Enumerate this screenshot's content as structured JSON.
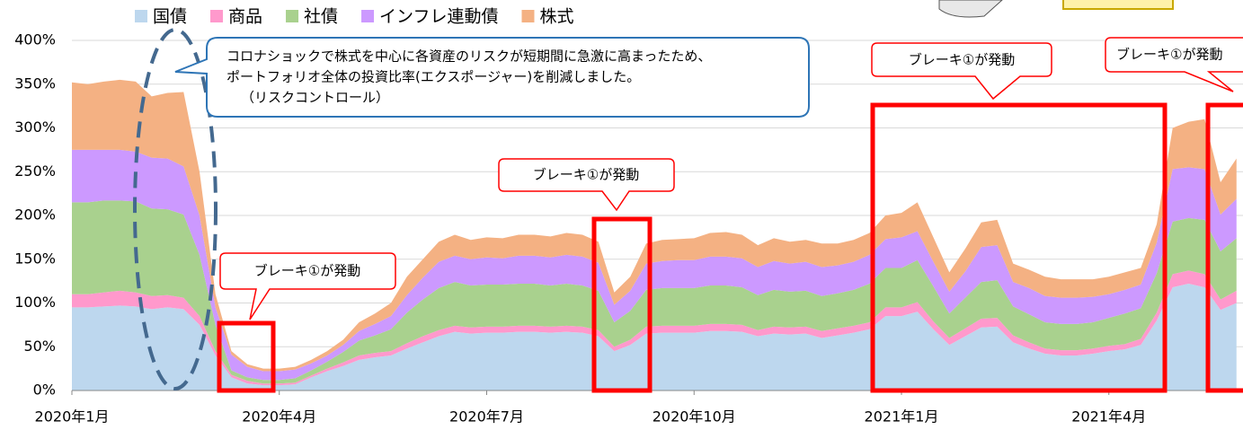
{
  "chart_data": {
    "type": "stacked-area",
    "categories": [
      "2020年1月",
      null,
      null,
      null,
      null,
      null,
      null,
      null,
      null,
      null,
      null,
      null,
      null,
      "2020年4月",
      null,
      null,
      null,
      null,
      null,
      null,
      null,
      null,
      null,
      null,
      null,
      null,
      "2020年7月",
      null,
      null,
      null,
      null,
      null,
      null,
      null,
      null,
      null,
      null,
      null,
      null,
      "2020年10月",
      null,
      null,
      null,
      null,
      null,
      null,
      null,
      null,
      null,
      null,
      null,
      null,
      "2021年1月",
      null,
      null,
      null,
      null,
      null,
      null,
      null,
      null,
      null,
      null,
      null,
      null,
      "2021年4月",
      null,
      null,
      null,
      null,
      null,
      null,
      null,
      null
    ],
    "series": [
      {
        "name": "国債",
        "color": "#bdd7ee",
        "values": [
          95,
          95,
          96,
          97,
          96,
          93,
          95,
          93,
          75,
          40,
          15,
          8,
          6,
          6,
          7,
          15,
          22,
          28,
          35,
          38,
          40,
          48,
          55,
          62,
          67,
          65,
          66,
          66,
          67,
          67,
          66,
          67,
          66,
          62,
          45,
          52,
          65,
          66,
          66,
          66,
          68,
          68,
          67,
          62,
          65,
          64,
          65,
          60,
          63,
          66,
          70,
          85,
          85,
          90,
          70,
          52,
          62,
          72,
          73,
          55,
          48,
          42,
          40,
          40,
          42,
          45,
          47,
          52,
          80,
          118,
          122,
          118,
          92,
          100
        ]
      },
      {
        "name": "商品",
        "color": "#ff99cc",
        "values": [
          15,
          15,
          16,
          17,
          16,
          15,
          14,
          13,
          10,
          5,
          3,
          3,
          2,
          2,
          2,
          2,
          3,
          4,
          5,
          5,
          5,
          6,
          7,
          7,
          7,
          7,
          7,
          7,
          7,
          7,
          7,
          7,
          7,
          7,
          5,
          6,
          8,
          8,
          8,
          8,
          8,
          8,
          8,
          7,
          8,
          8,
          8,
          8,
          8,
          8,
          8,
          10,
          10,
          11,
          9,
          8,
          9,
          10,
          10,
          8,
          7,
          6,
          6,
          6,
          6,
          6,
          6,
          7,
          9,
          15,
          15,
          15,
          12,
          14
        ]
      },
      {
        "name": "社債",
        "color": "#a9d18e",
        "values": [
          105,
          105,
          105,
          103,
          104,
          100,
          98,
          95,
          70,
          30,
          5,
          4,
          4,
          4,
          5,
          6,
          8,
          12,
          17,
          20,
          25,
          35,
          42,
          48,
          50,
          48,
          48,
          48,
          48,
          48,
          47,
          48,
          47,
          45,
          28,
          33,
          42,
          43,
          43,
          43,
          44,
          44,
          43,
          40,
          42,
          41,
          41,
          40,
          40,
          41,
          44,
          45,
          45,
          48,
          40,
          28,
          35,
          42,
          43,
          33,
          32,
          30,
          30,
          30,
          30,
          32,
          35,
          35,
          45,
          60,
          60,
          62,
          55,
          60
        ]
      },
      {
        "name": "インフレ連動債",
        "color": "#cc99ff",
        "values": [
          60,
          60,
          58,
          58,
          57,
          58,
          58,
          55,
          45,
          20,
          18,
          12,
          10,
          10,
          10,
          8,
          7,
          8,
          11,
          13,
          15,
          20,
          25,
          30,
          30,
          30,
          31,
          30,
          32,
          32,
          32,
          33,
          33,
          32,
          20,
          23,
          30,
          31,
          32,
          32,
          33,
          33,
          33,
          32,
          33,
          32,
          33,
          33,
          32,
          32,
          33,
          33,
          35,
          33,
          28,
          25,
          30,
          40,
          40,
          28,
          30,
          30,
          30,
          30,
          29,
          27,
          27,
          27,
          35,
          60,
          58,
          58,
          42,
          45
        ]
      },
      {
        "name": "株式",
        "color": "#f4b183",
        "values": [
          77,
          75,
          78,
          80,
          80,
          70,
          75,
          85,
          50,
          15,
          4,
          3,
          3,
          3,
          3,
          4,
          5,
          6,
          10,
          12,
          15,
          21,
          21,
          23,
          24,
          22,
          23,
          23,
          24,
          24,
          24,
          25,
          25,
          24,
          14,
          16,
          23,
          24,
          24,
          25,
          27,
          28,
          27,
          25,
          26,
          25,
          25,
          27,
          25,
          25,
          25,
          27,
          28,
          33,
          28,
          22,
          26,
          28,
          29,
          21,
          21,
          22,
          21,
          21,
          20,
          20,
          20,
          19,
          21,
          47,
          52,
          57,
          37,
          46
        ]
      }
    ],
    "ylim": [
      0,
      400
    ],
    "yticks": [
      {
        "value": 0,
        "label": "0%"
      },
      {
        "value": 50,
        "label": "50%"
      },
      {
        "value": 100,
        "label": "100%"
      },
      {
        "value": 150,
        "label": "150%"
      },
      {
        "value": 200,
        "label": "200%"
      },
      {
        "value": 250,
        "label": "250%"
      },
      {
        "value": 300,
        "label": "300%"
      },
      {
        "value": 350,
        "label": "350%"
      },
      {
        "value": 400,
        "label": "400%"
      }
    ],
    "grid": true,
    "annotations": [
      {
        "lines": [
          "コロナショックで株式を中心に各資産のリスクが短期間に急激に高まったため、",
          "ポートフォリオ全体の投資比率(エクスポージャー)を削減しました。",
          "（リスクコントロール）"
        ]
      },
      {
        "lines": [
          "ブレーキ①が発動"
        ]
      },
      {
        "lines": [
          "ブレーキ①が発動"
        ]
      },
      {
        "lines": [
          "ブレーキ①が発動"
        ]
      },
      {
        "lines": [
          "ブレーキ①が発動"
        ]
      }
    ]
  }
}
